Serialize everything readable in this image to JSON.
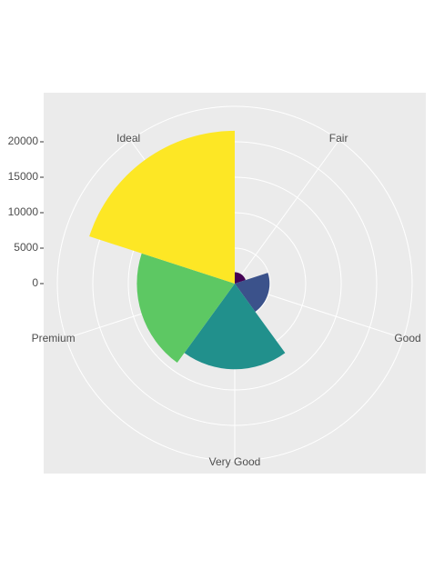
{
  "chart_data": {
    "type": "polar-bar",
    "categories": [
      "Fair",
      "Good",
      "Very Good",
      "Premium",
      "Ideal"
    ],
    "values": [
      1610,
      4906,
      12082,
      13791,
      21551
    ],
    "colors": [
      "#440154",
      "#3B528B",
      "#21908C",
      "#5DC863",
      "#FDE725"
    ],
    "ylim": [
      0,
      25000
    ],
    "yticks": [
      0,
      5000,
      10000,
      15000,
      20000
    ],
    "grid": true
  }
}
